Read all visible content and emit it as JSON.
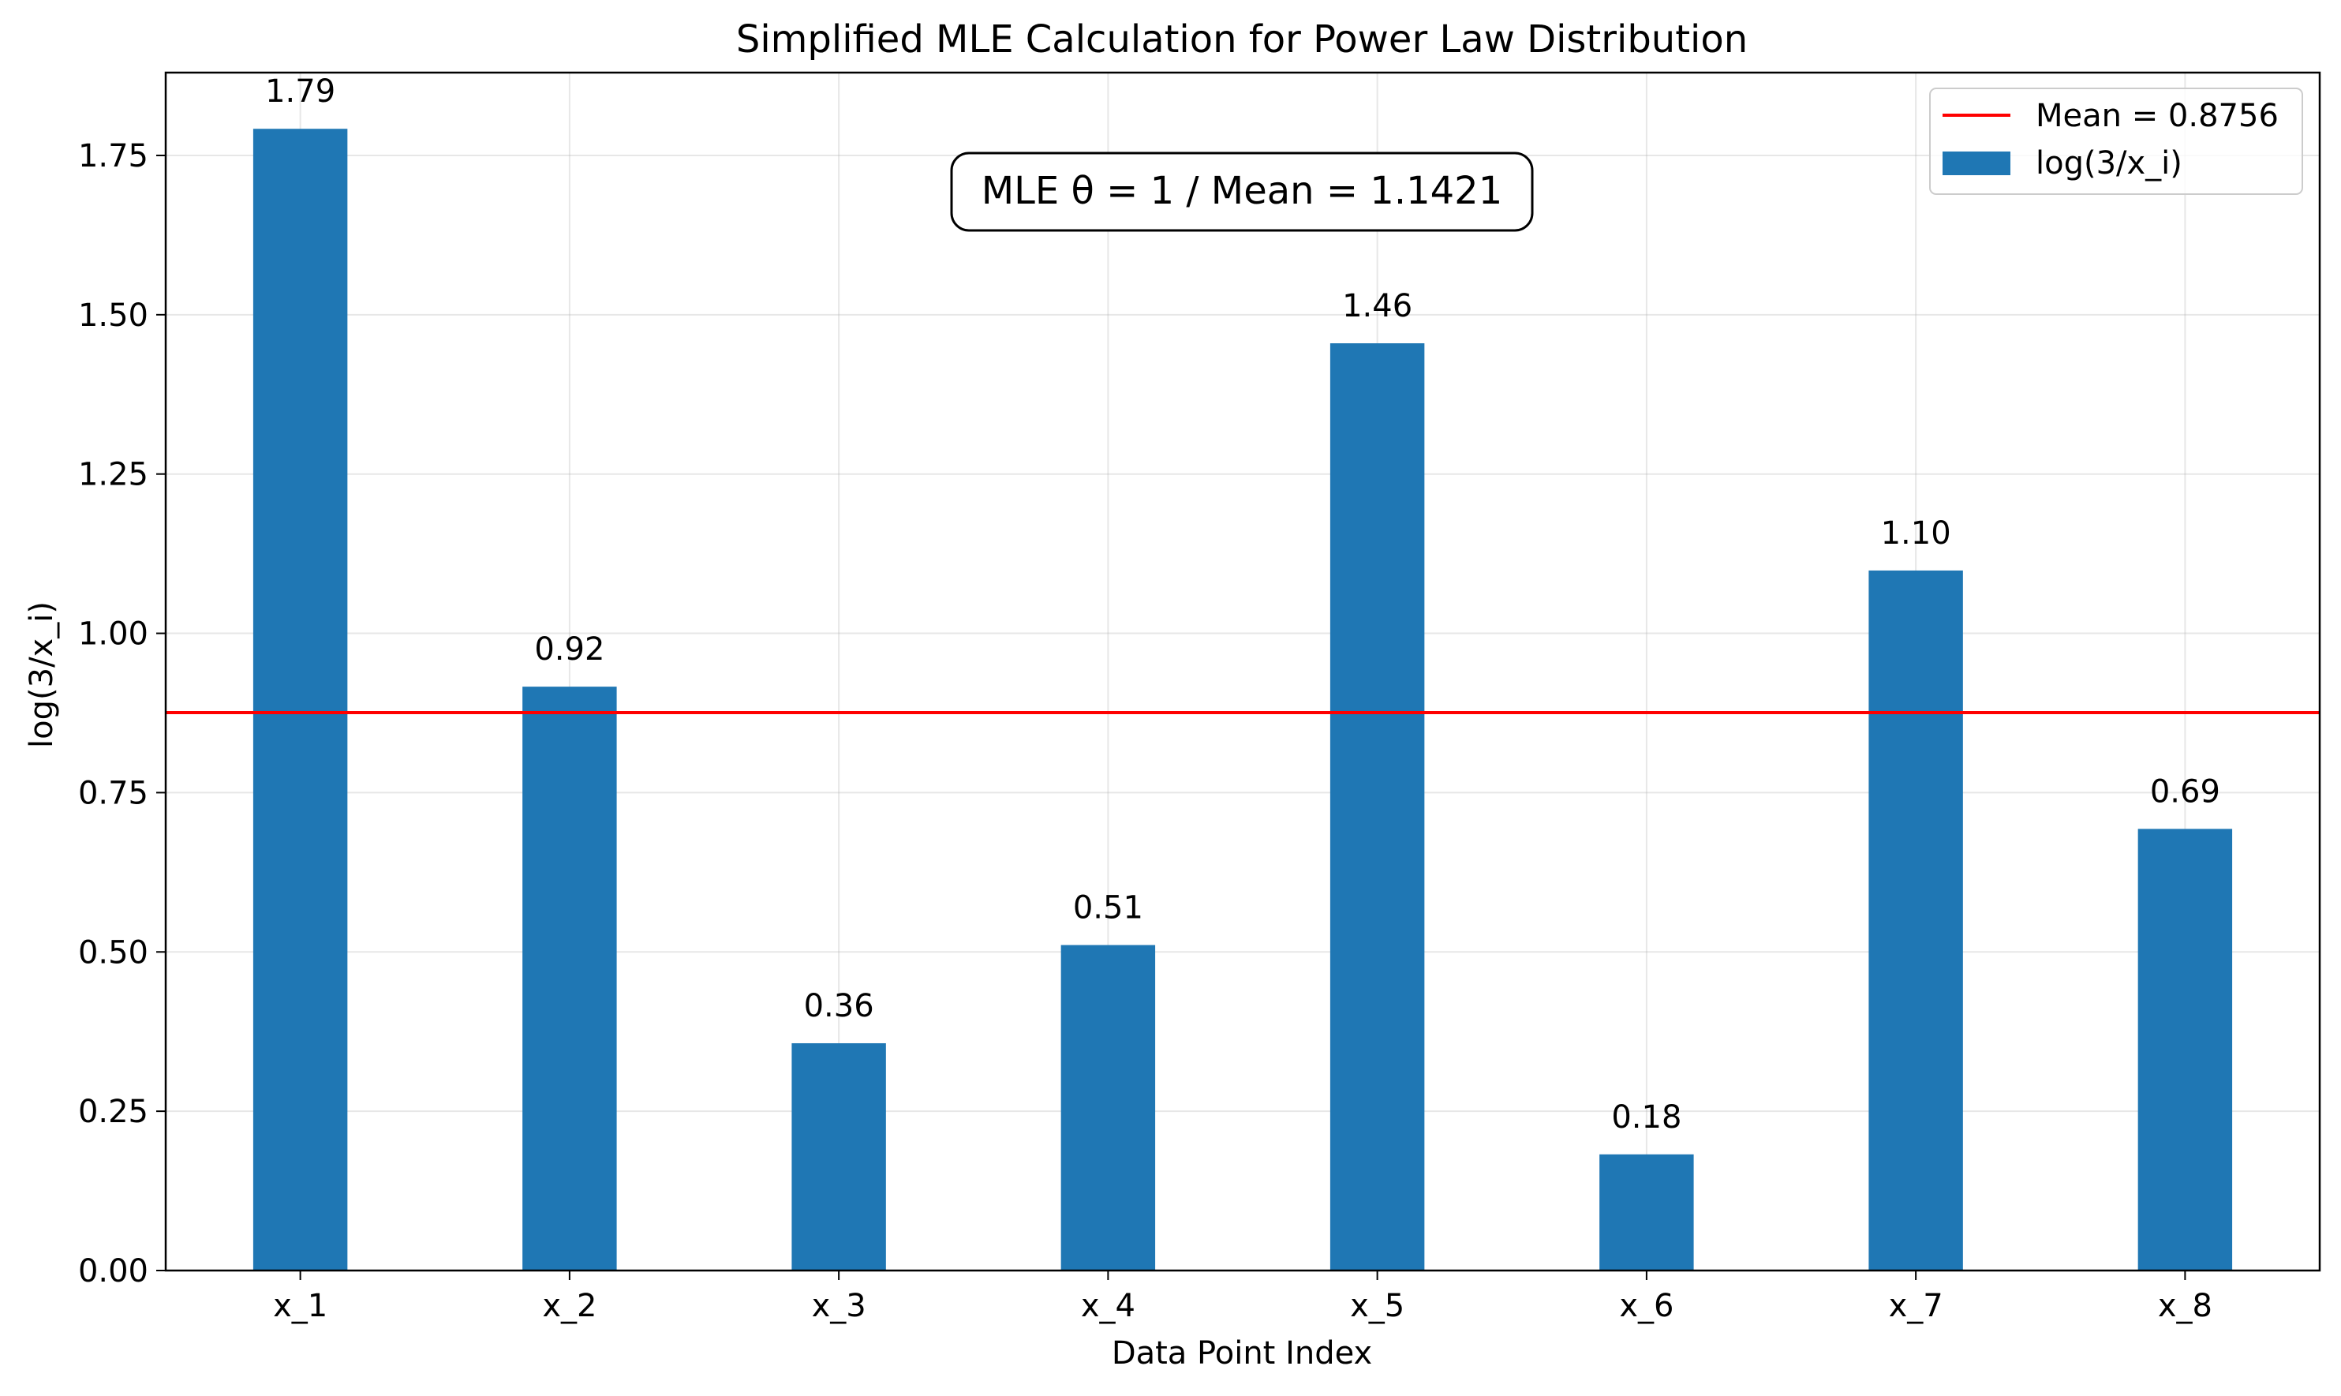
{
  "chart_data": {
    "type": "bar",
    "title": "Simplified MLE Calculation for Power Law Distribution",
    "xlabel": "Data Point Index",
    "ylabel": "log(3/x_i)",
    "categories": [
      "x_1",
      "x_2",
      "x_3",
      "x_4",
      "x_5",
      "x_6",
      "x_7",
      "x_8"
    ],
    "values": [
      1.7918,
      0.9163,
      0.3567,
      0.5108,
      1.4552,
      0.1823,
      1.0986,
      0.6931
    ],
    "data_labels": [
      "1.79",
      "0.92",
      "0.36",
      "0.51",
      "1.46",
      "0.18",
      "1.10",
      "0.69"
    ],
    "ylim": [
      0,
      1.88
    ],
    "yticks": [
      0.0,
      0.25,
      0.5,
      0.75,
      1.0,
      1.25,
      1.5,
      1.75
    ],
    "ytick_labels": [
      "0.00",
      "0.25",
      "0.50",
      "0.75",
      "1.00",
      "1.25",
      "1.50",
      "1.75"
    ],
    "grid": true,
    "bar_color": "#1f77b4",
    "mean_line": {
      "value": 0.8756,
      "color": "#ff0000",
      "label": "Mean = 0.8756"
    },
    "legend": {
      "placement": "top-right",
      "entries": [
        {
          "label": "Mean = 0.8756",
          "kind": "line",
          "color": "#ff0000"
        },
        {
          "label": "log(3/x_i)",
          "kind": "patch",
          "color": "#1f77b4"
        }
      ]
    },
    "annotation": {
      "text": "MLE θ = 1 / Mean = 1.1421",
      "placement": "top-center"
    }
  }
}
